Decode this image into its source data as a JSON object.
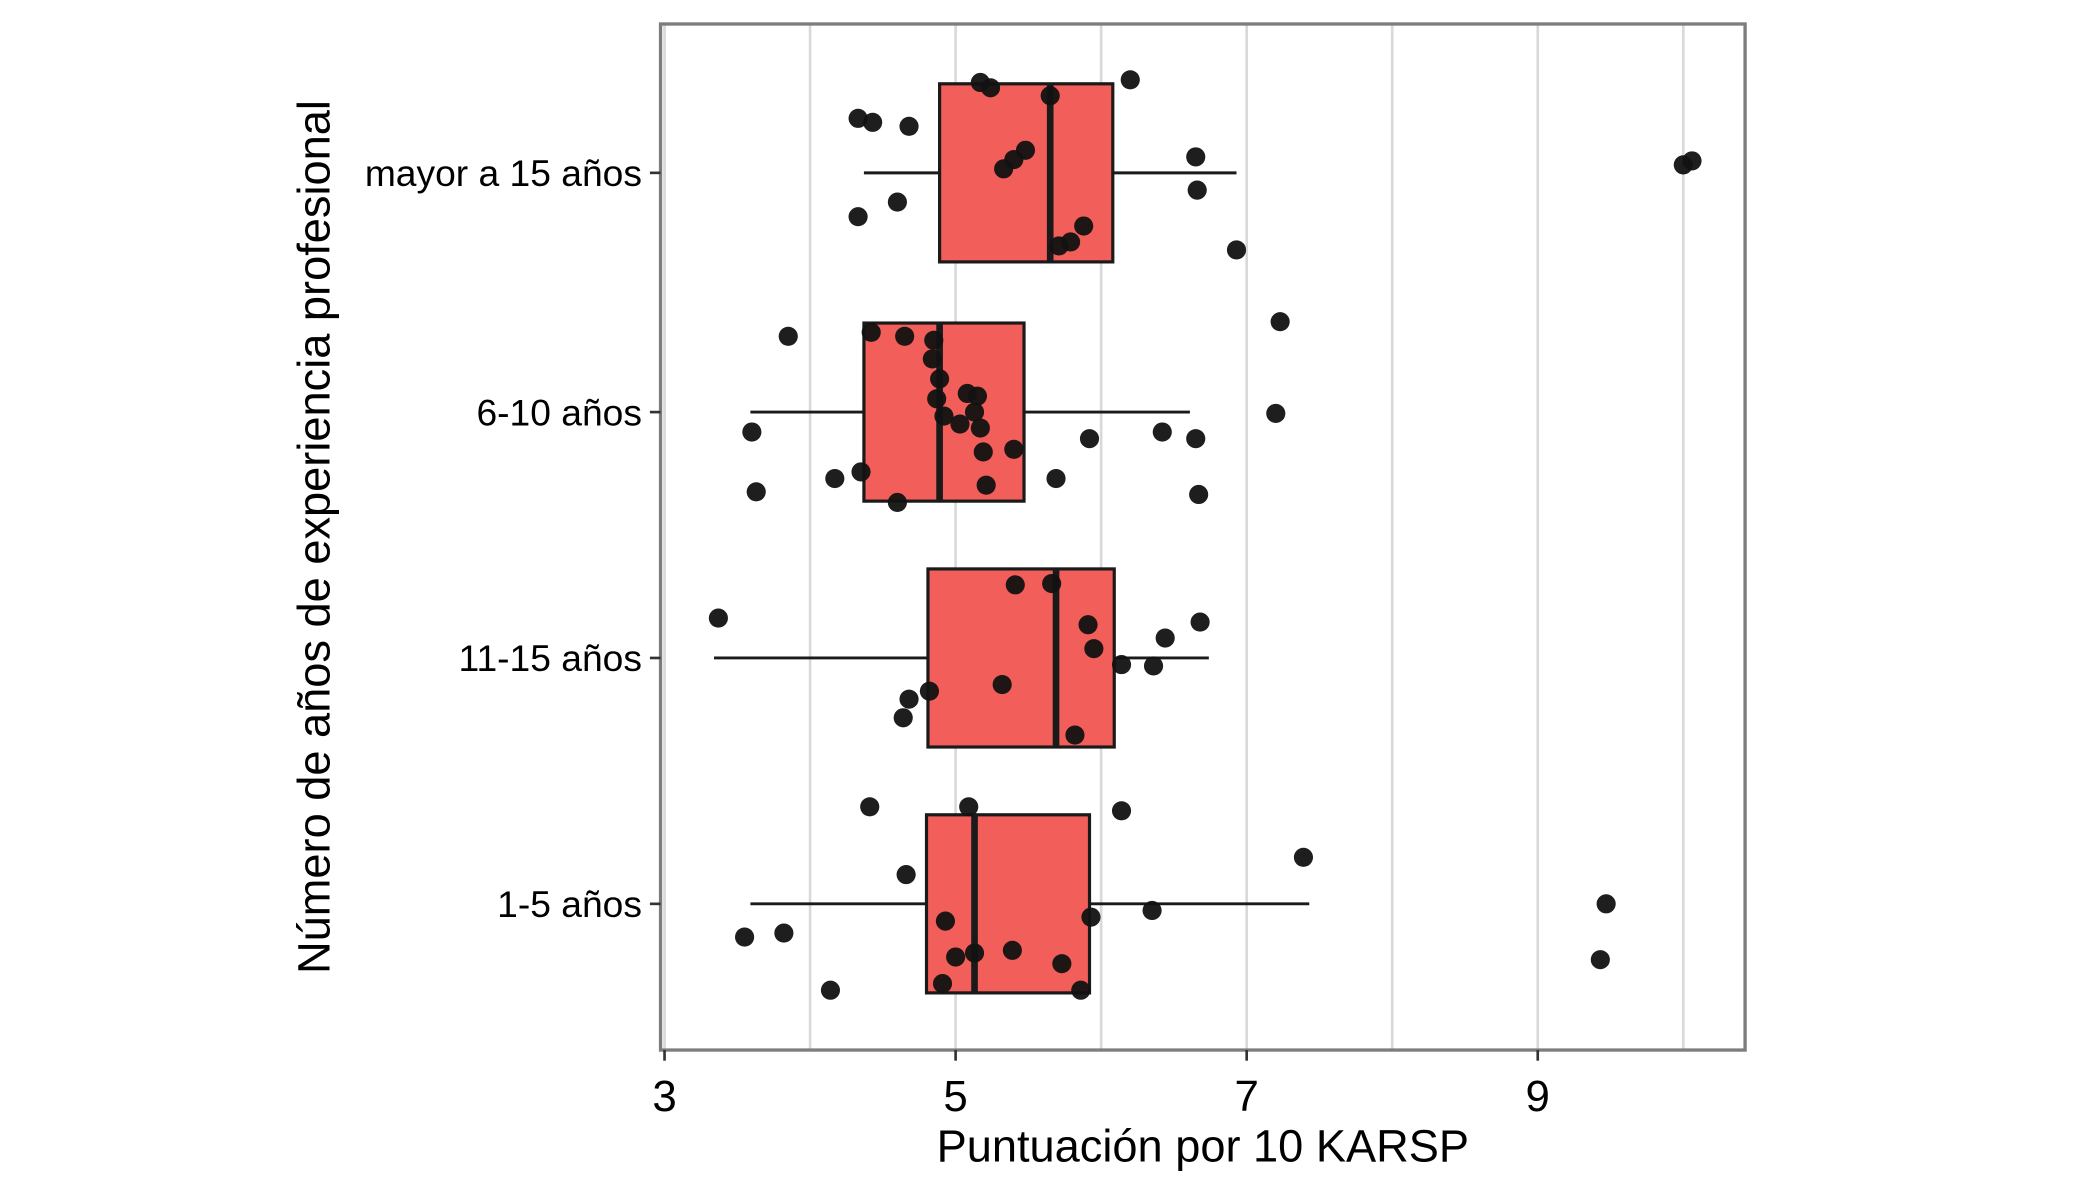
{
  "chart_data": {
    "type": "boxplot",
    "orientation": "horizontal",
    "overlay": "jittered points",
    "title": "",
    "xlabel": "Puntuación por 10 KARSP",
    "ylabel": "Número de años de experiencia profesional",
    "x_ticks": [
      3,
      5,
      7,
      9
    ],
    "x_tick_labels": [
      "3",
      "5",
      "7",
      "9"
    ],
    "gridlines_x": [
      3,
      4,
      5,
      6,
      7,
      8,
      9,
      10
    ],
    "xlim": [
      2.97,
      10.43
    ],
    "grid": "on",
    "legend": "none",
    "colors": {
      "box_fill": "#F25F5A",
      "box_stroke": "#1a1a1a",
      "point": "#121212",
      "grid": "#d9d9d9",
      "panel_border": "#7d7d7d",
      "text": "#000000",
      "background": "#ffffff"
    },
    "groups": [
      {
        "label": "mayor a 15 años",
        "whisker_low": 4.37,
        "q1": 4.89,
        "median": 5.65,
        "q3": 6.08,
        "whisker_high": 6.93,
        "outliers": [
          10.0,
          10.06
        ],
        "points": [
          [
            5.17,
            -68
          ],
          [
            5.24,
            -64
          ],
          [
            6.2,
            -70
          ],
          [
            4.33,
            -41
          ],
          [
            4.43,
            -38
          ],
          [
            4.68,
            -35
          ],
          [
            5.65,
            -58
          ],
          [
            5.48,
            -17
          ],
          [
            5.4,
            -10
          ],
          [
            5.33,
            -3
          ],
          [
            6.65,
            -12
          ],
          [
            6.66,
            13
          ],
          [
            10.0,
            -6
          ],
          [
            10.06,
            -9
          ],
          [
            4.33,
            33
          ],
          [
            4.6,
            22
          ],
          [
            5.88,
            40
          ],
          [
            5.71,
            55
          ],
          [
            5.79,
            52
          ],
          [
            6.93,
            58
          ]
        ]
      },
      {
        "label": "6-10 años",
        "whisker_low": 3.59,
        "q1": 4.37,
        "median": 4.89,
        "q3": 5.47,
        "whisker_high": 6.61,
        "outliers": [
          7.2
        ],
        "points": [
          [
            7.23,
            -68
          ],
          [
            3.85,
            -57
          ],
          [
            4.42,
            -60
          ],
          [
            4.65,
            -57
          ],
          [
            4.85,
            -54
          ],
          [
            4.84,
            -40
          ],
          [
            4.89,
            -25
          ],
          [
            4.87,
            -10
          ],
          [
            4.92,
            3
          ],
          [
            5.08,
            -14
          ],
          [
            5.15,
            -12
          ],
          [
            5.13,
            0
          ],
          [
            5.17,
            12
          ],
          [
            5.03,
            9
          ],
          [
            5.19,
            30
          ],
          [
            5.4,
            28
          ],
          [
            5.21,
            55
          ],
          [
            5.69,
            50
          ],
          [
            5.92,
            20
          ],
          [
            6.42,
            15
          ],
          [
            6.65,
            20
          ],
          [
            7.2,
            1
          ],
          [
            3.6,
            15
          ],
          [
            3.63,
            60
          ],
          [
            4.17,
            50
          ],
          [
            4.35,
            45
          ],
          [
            4.6,
            68
          ],
          [
            6.67,
            62
          ]
        ]
      },
      {
        "label": "11-15 años",
        "whisker_low": 3.34,
        "q1": 4.81,
        "median": 5.69,
        "q3": 6.09,
        "whisker_high": 6.74,
        "outliers": [],
        "points": [
          [
            3.37,
            -30
          ],
          [
            5.41,
            -55
          ],
          [
            5.66,
            -56
          ],
          [
            5.91,
            -25
          ],
          [
            5.95,
            -7
          ],
          [
            6.44,
            -15
          ],
          [
            6.68,
            -27
          ],
          [
            6.14,
            5
          ],
          [
            6.36,
            6
          ],
          [
            5.32,
            20
          ],
          [
            4.82,
            25
          ],
          [
            4.68,
            31
          ],
          [
            4.64,
            45
          ],
          [
            5.82,
            58
          ]
        ]
      },
      {
        "label": "1-5 años",
        "whisker_low": 3.59,
        "q1": 4.8,
        "median": 5.13,
        "q3": 5.92,
        "whisker_high": 7.43,
        "outliers": [
          9.43,
          9.47
        ],
        "points": [
          [
            4.41,
            -73
          ],
          [
            5.09,
            -73
          ],
          [
            6.14,
            -70
          ],
          [
            7.39,
            -35
          ],
          [
            4.66,
            -22
          ],
          [
            6.35,
            5
          ],
          [
            4.93,
            13
          ],
          [
            3.55,
            25
          ],
          [
            3.82,
            22
          ],
          [
            5.93,
            10
          ],
          [
            5.13,
            37
          ],
          [
            5.39,
            35
          ],
          [
            5.0,
            40
          ],
          [
            5.73,
            45
          ],
          [
            4.14,
            65
          ],
          [
            4.91,
            60
          ],
          [
            5.86,
            65
          ],
          [
            9.47,
            0
          ],
          [
            9.43,
            42
          ]
        ]
      }
    ]
  }
}
